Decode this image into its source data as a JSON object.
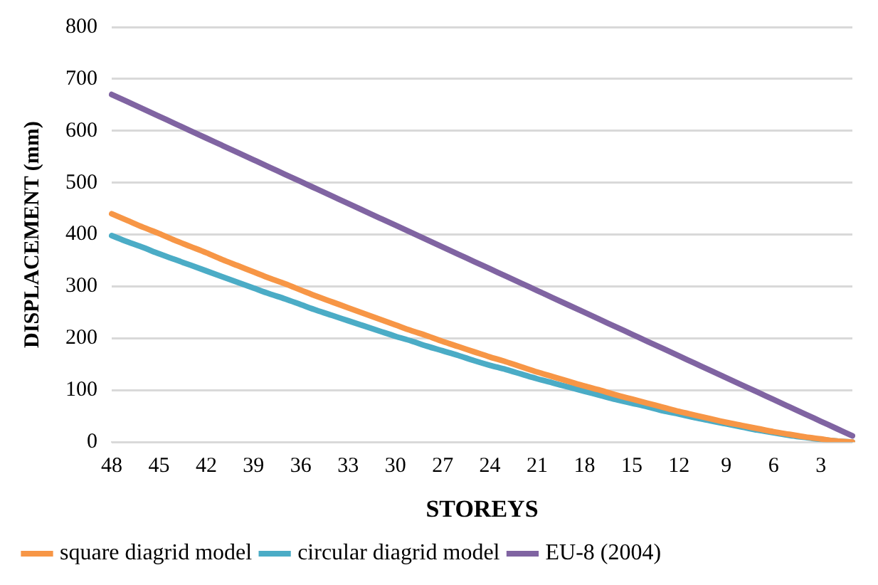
{
  "chart_data": {
    "type": "line",
    "xlabel": "STOREYS",
    "ylabel": "DISPLACEMENT (mm)",
    "categories": [
      "48",
      null,
      null,
      "45",
      null,
      null,
      "42",
      null,
      null,
      "39",
      null,
      null,
      "36",
      null,
      null,
      "33",
      null,
      null,
      "30",
      null,
      null,
      "27",
      null,
      null,
      "24",
      null,
      null,
      "21",
      null,
      null,
      "18",
      null,
      null,
      "15",
      null,
      null,
      "12",
      null,
      null,
      "9",
      null,
      null,
      "6",
      null,
      null,
      "3",
      null,
      null
    ],
    "series": [
      {
        "name": "square diagrid model",
        "color": "#f79646",
        "values": [
          440,
          427,
          414,
          402,
          389,
          377,
          365,
          352,
          340,
          328,
          316,
          305,
          293,
          281,
          270,
          259,
          248,
          237,
          226,
          215,
          205,
          194,
          184,
          174,
          164,
          155,
          145,
          135,
          126,
          117,
          108,
          100,
          91,
          83,
          75,
          67,
          59,
          52,
          45,
          38,
          32,
          26,
          20,
          15,
          10,
          6,
          2,
          0
        ]
      },
      {
        "name": "circular diagrid model",
        "color": "#4bacc6",
        "values": [
          398,
          386,
          375,
          363,
          352,
          341,
          330,
          319,
          308,
          297,
          286,
          276,
          265,
          254,
          244,
          234,
          224,
          214,
          204,
          195,
          185,
          176,
          167,
          157,
          148,
          140,
          131,
          122,
          114,
          106,
          98,
          90,
          82,
          75,
          68,
          60,
          54,
          47,
          41,
          35,
          29,
          23,
          18,
          13,
          9,
          5,
          2,
          0
        ]
      },
      {
        "name": "EU-8 (2004)",
        "color": "#8064a2",
        "values": [
          670,
          656,
          642,
          628,
          614,
          600,
          586,
          572,
          558,
          544,
          530,
          516,
          502,
          488,
          474,
          460,
          446,
          432,
          418,
          404,
          390,
          376,
          362,
          348,
          334,
          320,
          306,
          292,
          278,
          264,
          250,
          236,
          222,
          208,
          194,
          180,
          166,
          152,
          138,
          124,
          110,
          96,
          82,
          68,
          54,
          40,
          26,
          12
        ]
      }
    ],
    "ylim": [
      0,
      800
    ],
    "yticks": [
      0,
      100,
      200,
      300,
      400,
      500,
      600,
      700,
      800
    ],
    "grid": "y",
    "legend": "bottom",
    "marker": "none",
    "line_style": "solid"
  }
}
